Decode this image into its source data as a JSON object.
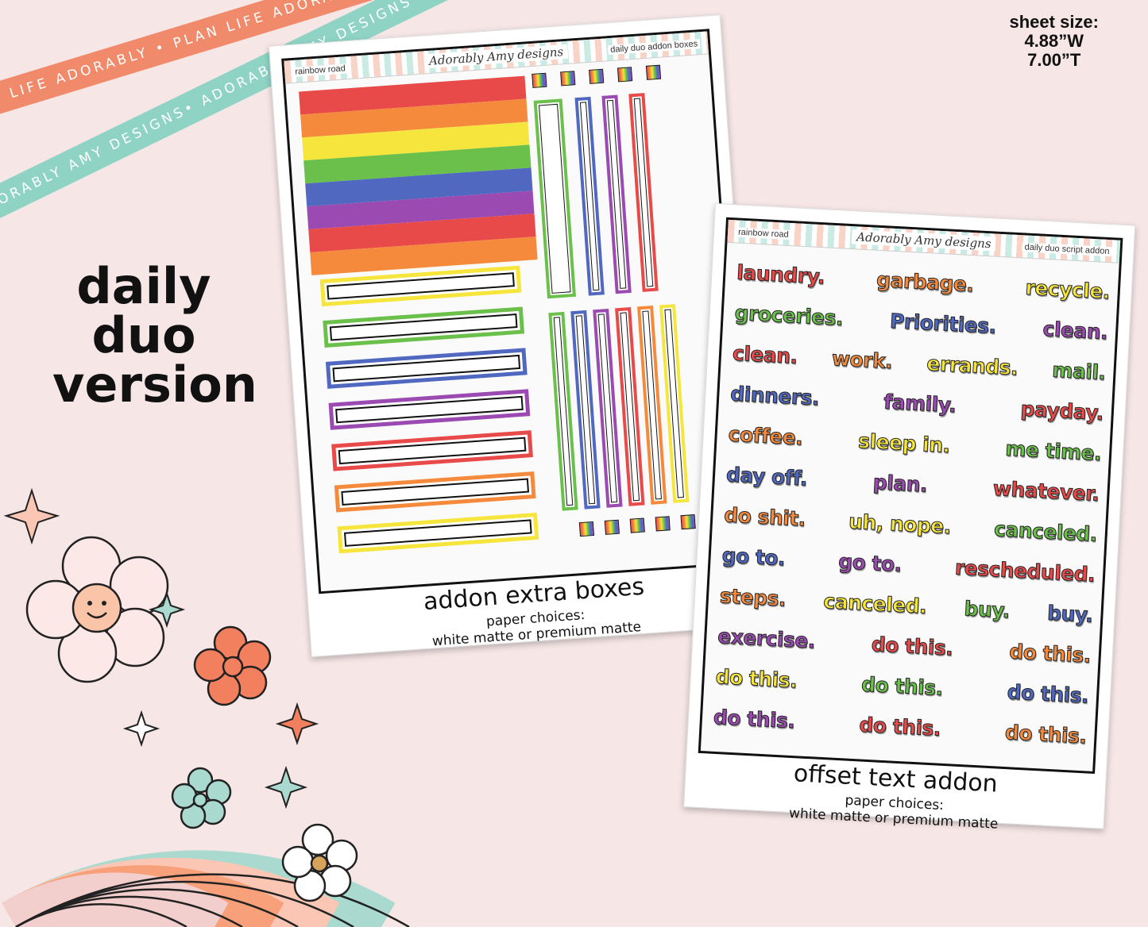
{
  "ribbons": {
    "top": "PLAN LIFE ADORABLY • PLAN LIFE ADORABLY • PLAN LIFE ADORABLY •",
    "bottom": "ADORABLY AMY DESIGNS• ADORABLY AMY DESIGNS• ADORABLY AMY DESIGNS•"
  },
  "sheet_size": {
    "label": "sheet size:",
    "width": "4.88”W",
    "height": "7.00”T"
  },
  "version_lines": [
    "daily",
    "duo",
    "version"
  ],
  "card1": {
    "head_left": "rainbow road",
    "brand": "Adorably Amy designs",
    "head_right": "daily duo addon boxes",
    "title": "addon extra boxes",
    "sub1": "paper choices:",
    "sub2": "white matte or premium matte"
  },
  "card2": {
    "head_left": "rainbow road",
    "brand": "Adorably Amy designs",
    "head_right": "daily duo script addon",
    "title": "offset text addon",
    "sub1": "paper choices:",
    "sub2": "white matte or premium matte",
    "words": [
      [
        "laundry.",
        "garbage.",
        "recycle."
      ],
      [
        "groceries.",
        "Priorities.",
        "clean."
      ],
      [
        "clean.",
        "work.",
        "errands.",
        "mail."
      ],
      [
        "dinners.",
        "family.",
        "payday."
      ],
      [
        "coffee.",
        "sleep in.",
        "me time."
      ],
      [
        "day off.",
        "plan.",
        "whatever."
      ],
      [
        "do shit.",
        "uh, nope.",
        "canceled."
      ],
      [
        "go to.",
        "go to.",
        "rescheduled."
      ],
      [
        "steps.",
        "canceled.",
        "buy.",
        "buy."
      ],
      [
        "exercise.",
        "do this.",
        "do this."
      ],
      [
        "do this.",
        "do this.",
        "do this."
      ],
      [
        "do this.",
        "do this.",
        "do this."
      ]
    ]
  },
  "colors": {
    "red": "#e84a4a",
    "orange": "#f58a3c",
    "yellow": "#f5e53c",
    "green": "#6ac04a",
    "blue": "#5068c0",
    "purple": "#9a4ab0",
    "background": "#f6e6e6",
    "ribbon_coral": "#f08a6a",
    "ribbon_mint": "#8fd3c5"
  }
}
